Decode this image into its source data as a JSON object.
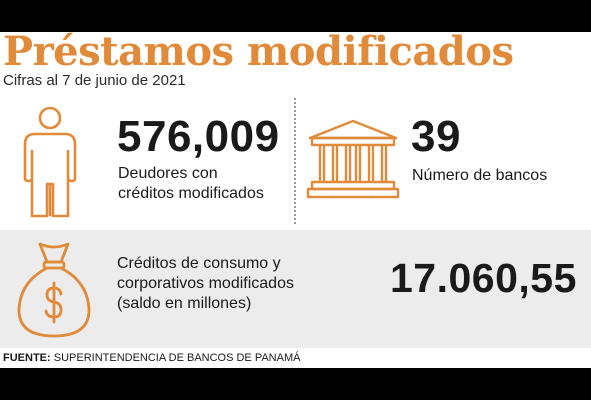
{
  "title": "Préstamos modificados",
  "subtitle": "Cifras al 7 de junio de 2021",
  "debtors": {
    "value": "576,009",
    "label_line1": "Deudores con",
    "label_line2": "créditos modificados",
    "icon": "person-icon"
  },
  "banks": {
    "value": "39",
    "label": "Número de bancos",
    "icon": "bank-icon"
  },
  "credits": {
    "label_line1": "Créditos de consumo y",
    "label_line2": "corporativos modificados",
    "label_line3": "(saldo en millones)",
    "value": "17.060,55",
    "icon": "money-bag-icon"
  },
  "source": {
    "label": "FUENTE:",
    "text": "SUPERINTENDENCIA DE BANCOS DE PANAMÁ"
  },
  "colors": {
    "accent": "#e08a3a",
    "band": "#ececec",
    "frame": "#000000"
  }
}
